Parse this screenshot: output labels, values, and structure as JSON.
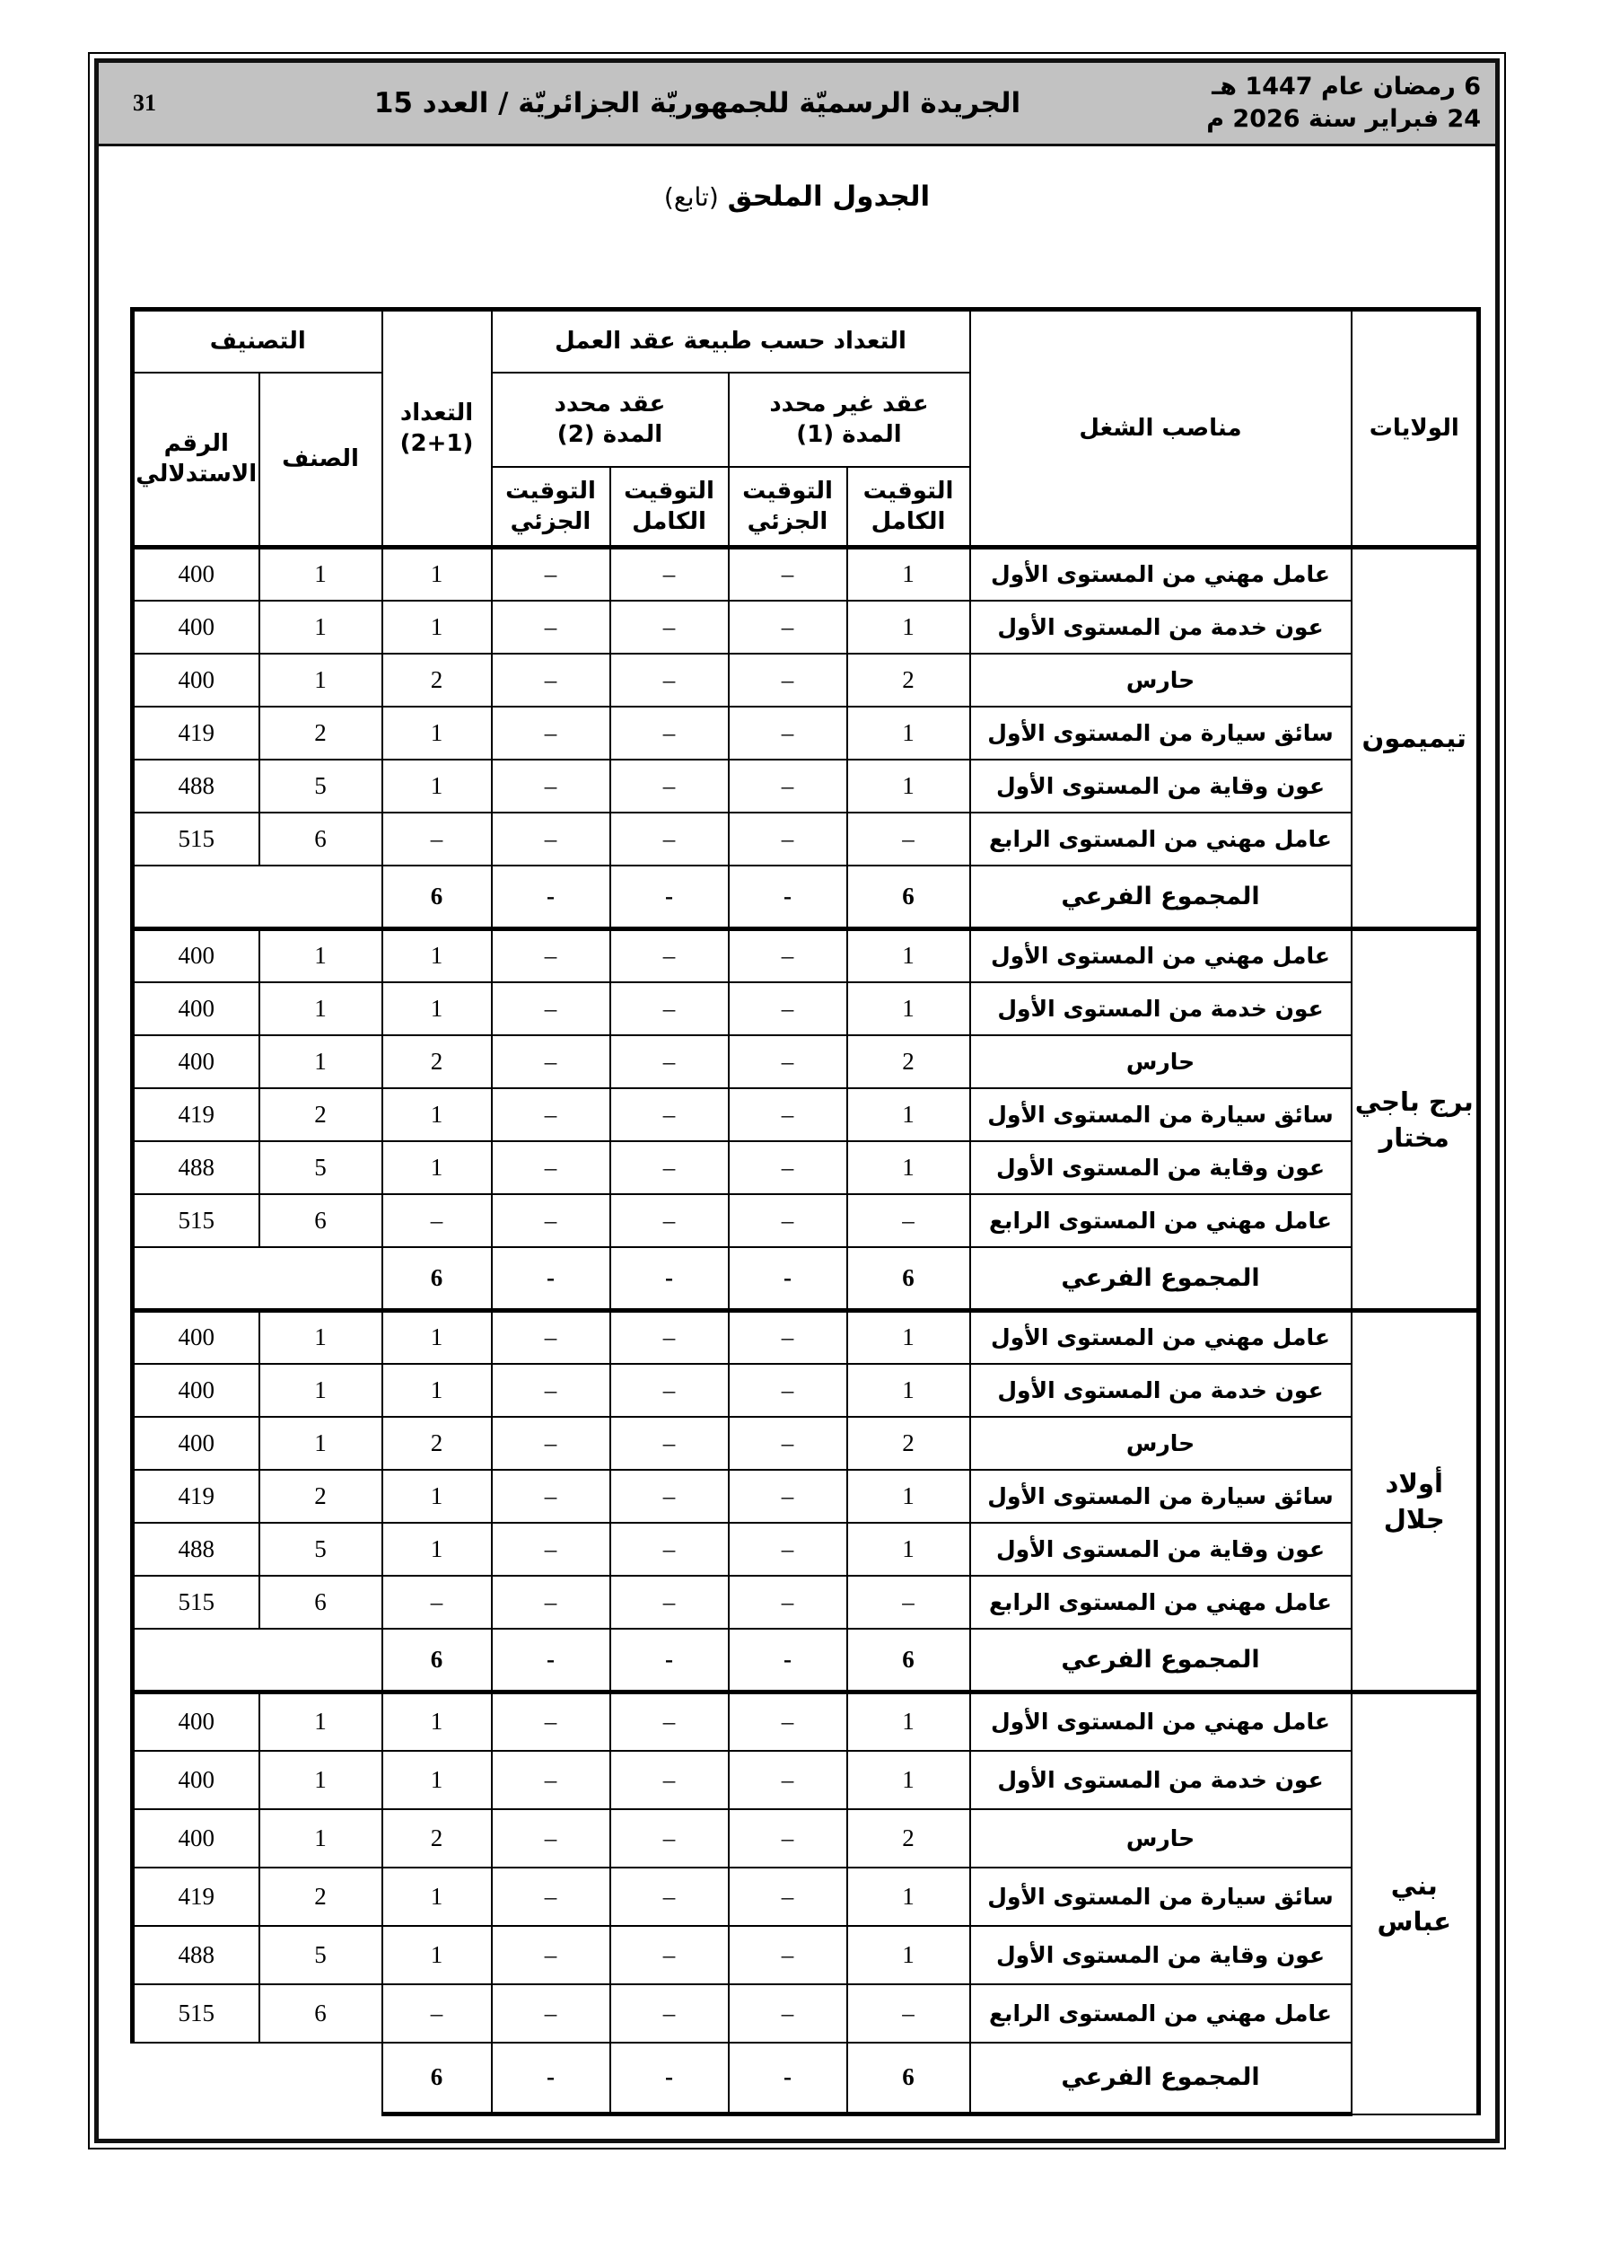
{
  "page": {
    "number": "31",
    "journal_title": "الجريدة الرسميّة للجمهوريّة الجزائريّة / العدد 15",
    "date_hijri": "6 رمضان عام 1447 هـ",
    "date_gregorian": "24 فبراير سنة 2026 م",
    "doc_title_bold": "الجدول الملحق",
    "doc_title_note": "(تابع)"
  },
  "table": {
    "headers": {
      "wilayas": "الولايات",
      "positions": "مناصب الشغل",
      "count_by_contract": "التعداد حسب طبيعة عقد العمل",
      "open_contract_l1": "عقد غير محدد",
      "open_contract_l2": "المدة (1)",
      "fixed_contract_l1": "عقد محدد",
      "fixed_contract_l2": "المدة (2)",
      "full_time_l1": "التوقيت",
      "full_time_l2": "الكامل",
      "part_time_l1": "التوقيت",
      "part_time_l2": "الجزئي",
      "total_l1": "التعداد",
      "total_l2": "(2+1)",
      "classification": "التصنيف",
      "category": "الصنف",
      "index_number_l1": "الرقم",
      "index_number_l2": "الاستدلالي"
    },
    "subtotal_label": "المجموع الفرعي",
    "groups": [
      {
        "wilaya_lines": [
          "تيميمون"
        ],
        "rows": [
          {
            "label": "عامل مهني من المستوى الأول",
            "full1": "1",
            "part1": "–",
            "full2": "–",
            "part2": "–",
            "total": "1",
            "category": "1",
            "index": "400"
          },
          {
            "label": "عون خدمة من المستوى الأول",
            "full1": "1",
            "part1": "–",
            "full2": "–",
            "part2": "–",
            "total": "1",
            "category": "1",
            "index": "400"
          },
          {
            "label": "حارس",
            "full1": "2",
            "part1": "–",
            "full2": "–",
            "part2": "–",
            "total": "2",
            "category": "1",
            "index": "400"
          },
          {
            "label": "سائق سيارة من المستوى الأول",
            "full1": "1",
            "part1": "–",
            "full2": "–",
            "part2": "–",
            "total": "1",
            "category": "2",
            "index": "419"
          },
          {
            "label": "عون وقاية من المستوى الأول",
            "full1": "1",
            "part1": "–",
            "full2": "–",
            "part2": "–",
            "total": "1",
            "category": "5",
            "index": "488"
          },
          {
            "label": "عامل مهني من المستوى الرابع",
            "full1": "–",
            "part1": "–",
            "full2": "–",
            "part2": "–",
            "total": "–",
            "category": "6",
            "index": "515"
          }
        ],
        "subtotal": {
          "full1": "6",
          "part1": "-",
          "full2": "-",
          "part2": "-",
          "total": "6"
        }
      },
      {
        "wilaya_lines": [
          "برج باجي",
          "مختار"
        ],
        "rows": [
          {
            "label": "عامل مهني من المستوى الأول",
            "full1": "1",
            "part1": "–",
            "full2": "–",
            "part2": "–",
            "total": "1",
            "category": "1",
            "index": "400"
          },
          {
            "label": "عون خدمة من المستوى الأول",
            "full1": "1",
            "part1": "–",
            "full2": "–",
            "part2": "–",
            "total": "1",
            "category": "1",
            "index": "400"
          },
          {
            "label": "حارس",
            "full1": "2",
            "part1": "–",
            "full2": "–",
            "part2": "–",
            "total": "2",
            "category": "1",
            "index": "400"
          },
          {
            "label": "سائق سيارة من المستوى الأول",
            "full1": "1",
            "part1": "–",
            "full2": "–",
            "part2": "–",
            "total": "1",
            "category": "2",
            "index": "419"
          },
          {
            "label": "عون وقاية من المستوى الأول",
            "full1": "1",
            "part1": "–",
            "full2": "–",
            "part2": "–",
            "total": "1",
            "category": "5",
            "index": "488"
          },
          {
            "label": "عامل مهني من المستوى الرابع",
            "full1": "–",
            "part1": "–",
            "full2": "–",
            "part2": "–",
            "total": "–",
            "category": "6",
            "index": "515"
          }
        ],
        "subtotal": {
          "full1": "6",
          "part1": "-",
          "full2": "-",
          "part2": "-",
          "total": "6"
        }
      },
      {
        "wilaya_lines": [
          "أولاد جلال"
        ],
        "rows": [
          {
            "label": "عامل مهني من المستوى الأول",
            "full1": "1",
            "part1": "–",
            "full2": "–",
            "part2": "–",
            "total": "1",
            "category": "1",
            "index": "400"
          },
          {
            "label": "عون خدمة من المستوى الأول",
            "full1": "1",
            "part1": "–",
            "full2": "–",
            "part2": "–",
            "total": "1",
            "category": "1",
            "index": "400"
          },
          {
            "label": "حارس",
            "full1": "2",
            "part1": "–",
            "full2": "–",
            "part2": "–",
            "total": "2",
            "category": "1",
            "index": "400"
          },
          {
            "label": "سائق سيارة من المستوى الأول",
            "full1": "1",
            "part1": "–",
            "full2": "–",
            "part2": "–",
            "total": "1",
            "category": "2",
            "index": "419"
          },
          {
            "label": "عون وقاية من المستوى الأول",
            "full1": "1",
            "part1": "–",
            "full2": "–",
            "part2": "–",
            "total": "1",
            "category": "5",
            "index": "488"
          },
          {
            "label": "عامل مهني من المستوى الرابع",
            "full1": "–",
            "part1": "–",
            "full2": "–",
            "part2": "–",
            "total": "–",
            "category": "6",
            "index": "515"
          }
        ],
        "subtotal": {
          "full1": "6",
          "part1": "-",
          "full2": "-",
          "part2": "-",
          "total": "6"
        }
      },
      {
        "wilaya_lines": [
          "بني",
          "عباس"
        ],
        "rows": [
          {
            "label": "عامل مهني من المستوى الأول",
            "full1": "1",
            "part1": "–",
            "full2": "–",
            "part2": "–",
            "total": "1",
            "category": "1",
            "index": "400"
          },
          {
            "label": "عون خدمة من المستوى الأول",
            "full1": "1",
            "part1": "–",
            "full2": "–",
            "part2": "–",
            "total": "1",
            "category": "1",
            "index": "400"
          },
          {
            "label": "حارس",
            "full1": "2",
            "part1": "–",
            "full2": "–",
            "part2": "–",
            "total": "2",
            "category": "1",
            "index": "400"
          },
          {
            "label": "سائق سيارة من المستوى الأول",
            "full1": "1",
            "part1": "–",
            "full2": "–",
            "part2": "–",
            "total": "1",
            "category": "2",
            "index": "419"
          },
          {
            "label": "عون وقاية من المستوى الأول",
            "full1": "1",
            "part1": "–",
            "full2": "–",
            "part2": "–",
            "total": "1",
            "category": "5",
            "index": "488"
          },
          {
            "label": "عامل مهني من المستوى الرابع",
            "full1": "–",
            "part1": "–",
            "full2": "–",
            "part2": "–",
            "total": "–",
            "category": "6",
            "index": "515"
          }
        ],
        "subtotal": {
          "full1": "6",
          "part1": "-",
          "full2": "-",
          "part2": "-",
          "total": "6"
        }
      }
    ]
  }
}
